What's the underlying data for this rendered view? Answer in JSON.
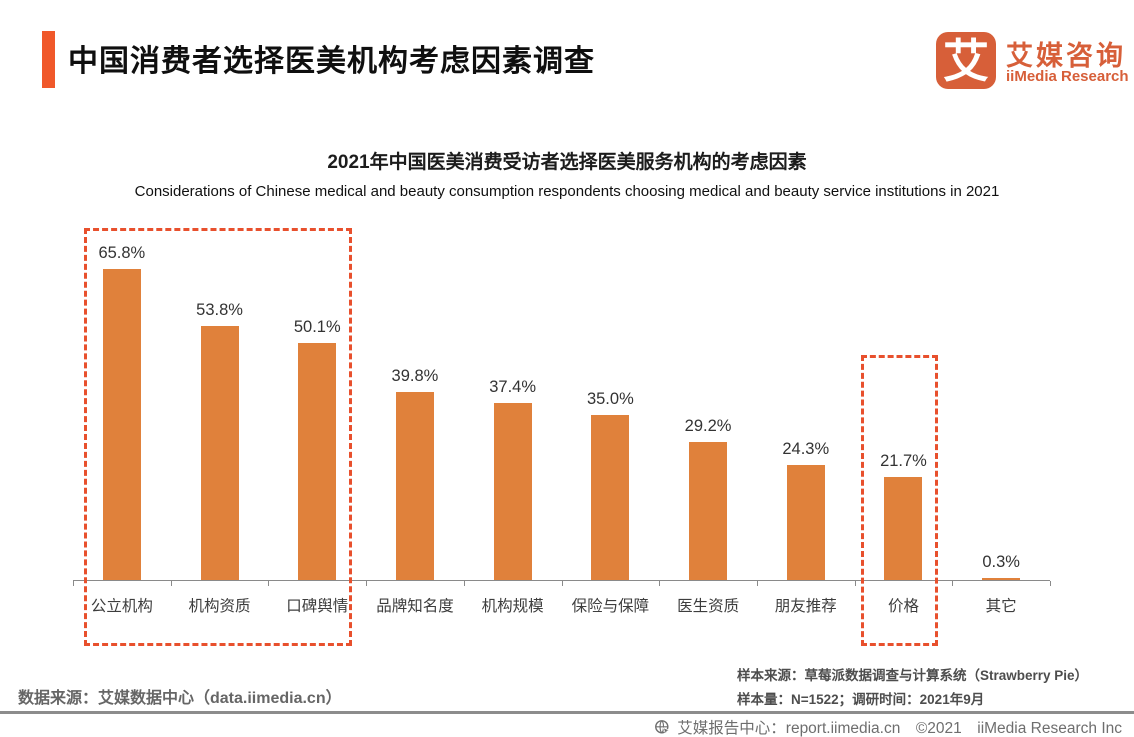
{
  "header": {
    "title": "中国消费者选择医美机构考虑因素调查",
    "logo": {
      "mark": "艾",
      "name_cn": "艾媒咨询",
      "name_en": "iiMedia Research"
    }
  },
  "chart_data": {
    "type": "bar",
    "title": "2021年中国医美消费受访者选择医美服务机构的考虑因素",
    "subtitle": "Considerations of Chinese medical and beauty consumption respondents choosing medical and beauty service institutions in 2021",
    "categories": [
      "公立机构",
      "机构资质",
      "口碑舆情",
      "品牌知名度",
      "机构规模",
      "保险与保障",
      "医生资质",
      "朋友推荐",
      "价格",
      "其它"
    ],
    "values": [
      65.8,
      53.8,
      50.1,
      39.8,
      37.4,
      35.0,
      29.2,
      24.3,
      21.7,
      0.3
    ],
    "value_labels": [
      "65.8%",
      "53.8%",
      "50.1%",
      "39.8%",
      "37.4%",
      "35.0%",
      "29.2%",
      "24.3%",
      "21.7%",
      "0.3%"
    ],
    "xlabel": "",
    "ylabel": "",
    "ylim": [
      0,
      70
    ],
    "grid": false,
    "legend": "none",
    "bar_color": "#E0813B",
    "highlights": [
      {
        "categories": [
          "公立机构",
          "机构资质",
          "口碑舆情"
        ]
      },
      {
        "categories": [
          "价格"
        ]
      }
    ],
    "highlight_color": "#E8502D"
  },
  "footnotes": {
    "data_source": "数据来源：艾媒数据中心（data.iimedia.cn）",
    "sample_source": "样本来源：草莓派数据调查与计算系统（Strawberry Pie）",
    "sample_info": "样本量：N=1522；调研时间：2021年9月"
  },
  "footer": {
    "text": "艾媒报告中心：report.iimedia.cn　©2021　iiMedia Research Inc"
  },
  "colors": {
    "accent": "#F0582A",
    "bar": "#E0813B",
    "dashed": "#E8502D",
    "logo": "#D75F39",
    "axis": "#8a8a8a"
  }
}
